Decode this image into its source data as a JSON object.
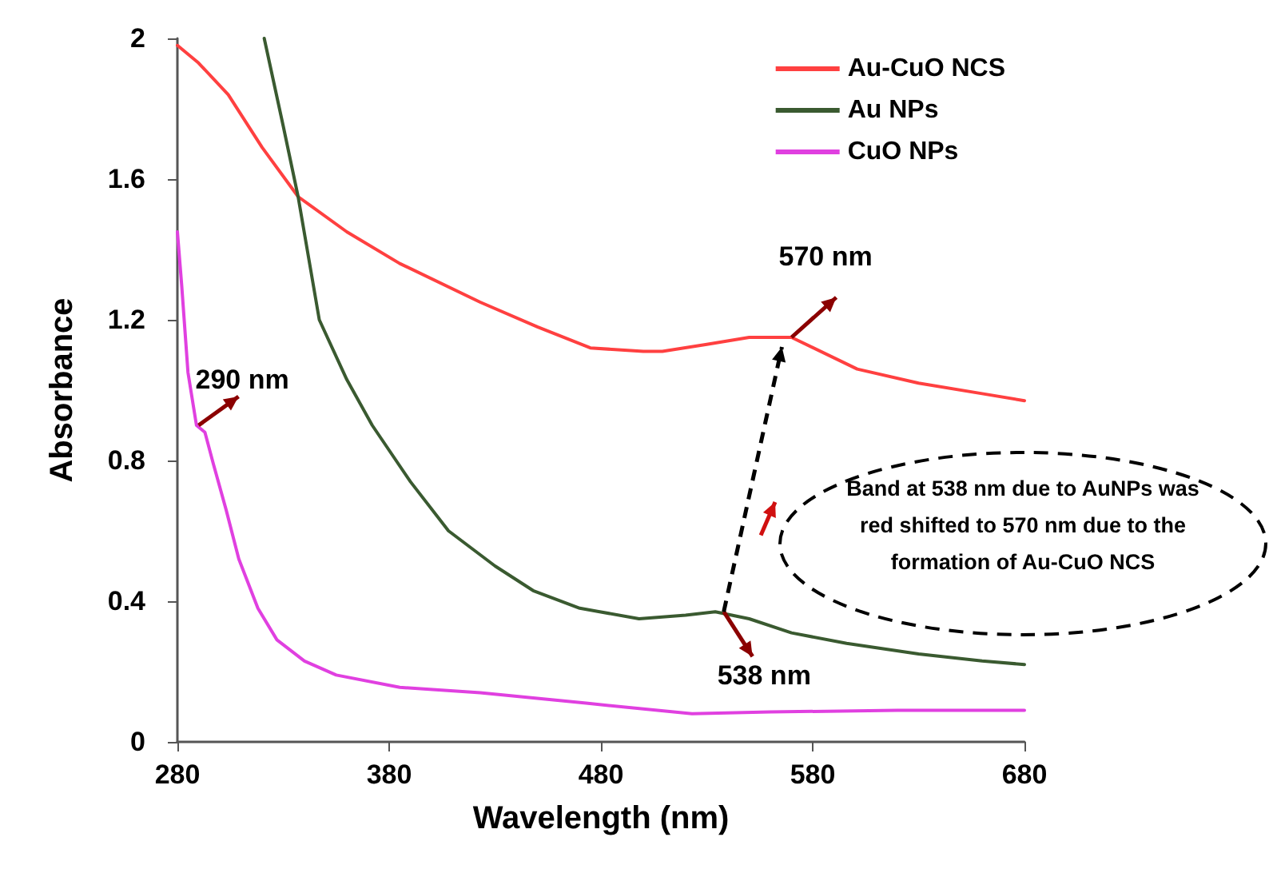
{
  "chart_data": {
    "type": "line",
    "xlabel": "Wavelength (nm)",
    "ylabel": "Absorbance",
    "xlim": [
      280,
      680
    ],
    "xticks": [
      280,
      380,
      480,
      580,
      680
    ],
    "ylim": [
      0,
      2
    ],
    "yticks": [
      0,
      0.4,
      0.8,
      1.2,
      1.6,
      2
    ],
    "grid": false,
    "legend": "top right",
    "marker": "none",
    "line_style": "solid",
    "series": [
      {
        "name": "Au-CuO NCS",
        "color": "#ff4040",
        "x": [
          280,
          290,
          304,
          320,
          337,
          360,
          385,
          423,
          450,
          475,
          500,
          509,
          530,
          550,
          570,
          601,
          630,
          660,
          680
        ],
        "values": [
          1.98,
          1.93,
          1.84,
          1.69,
          1.55,
          1.45,
          1.36,
          1.25,
          1.18,
          1.12,
          1.11,
          1.11,
          1.13,
          1.15,
          1.15,
          1.06,
          1.02,
          0.99,
          0.97
        ]
      },
      {
        "name": "Au NPs",
        "color": "#3a5a30",
        "x": [
          321,
          330,
          337,
          347,
          360,
          372,
          390,
          408,
          430,
          448,
          470,
          498,
          520,
          534,
          550,
          570,
          596,
          630,
          660,
          680
        ],
        "values": [
          2.0,
          1.75,
          1.55,
          1.2,
          1.03,
          0.9,
          0.74,
          0.6,
          0.5,
          0.43,
          0.38,
          0.35,
          0.36,
          0.37,
          0.35,
          0.31,
          0.28,
          0.25,
          0.23,
          0.22
        ]
      },
      {
        "name": "CuO NPs",
        "color": "#e040e0",
        "x": [
          280,
          282,
          285,
          289,
          293,
          297,
          303,
          309,
          318,
          327,
          340,
          355,
          385,
          423,
          473,
          523,
          560,
          620,
          680
        ],
        "values": [
          1.45,
          1.3,
          1.05,
          0.9,
          0.88,
          0.79,
          0.66,
          0.52,
          0.38,
          0.29,
          0.23,
          0.19,
          0.155,
          0.14,
          0.11,
          0.08,
          0.085,
          0.09,
          0.09
        ]
      }
    ],
    "annotations": [
      {
        "text": "290 nm",
        "x": 290,
        "y": 0.9
      },
      {
        "text": "570 nm",
        "x": 570,
        "y": 1.15
      },
      {
        "text": "538 nm",
        "x": 538,
        "y": 0.37
      },
      "Band at 538 nm due to AuNPs was red shifted to 570 nm due to the formation of Au-CuO NCS"
    ]
  }
}
